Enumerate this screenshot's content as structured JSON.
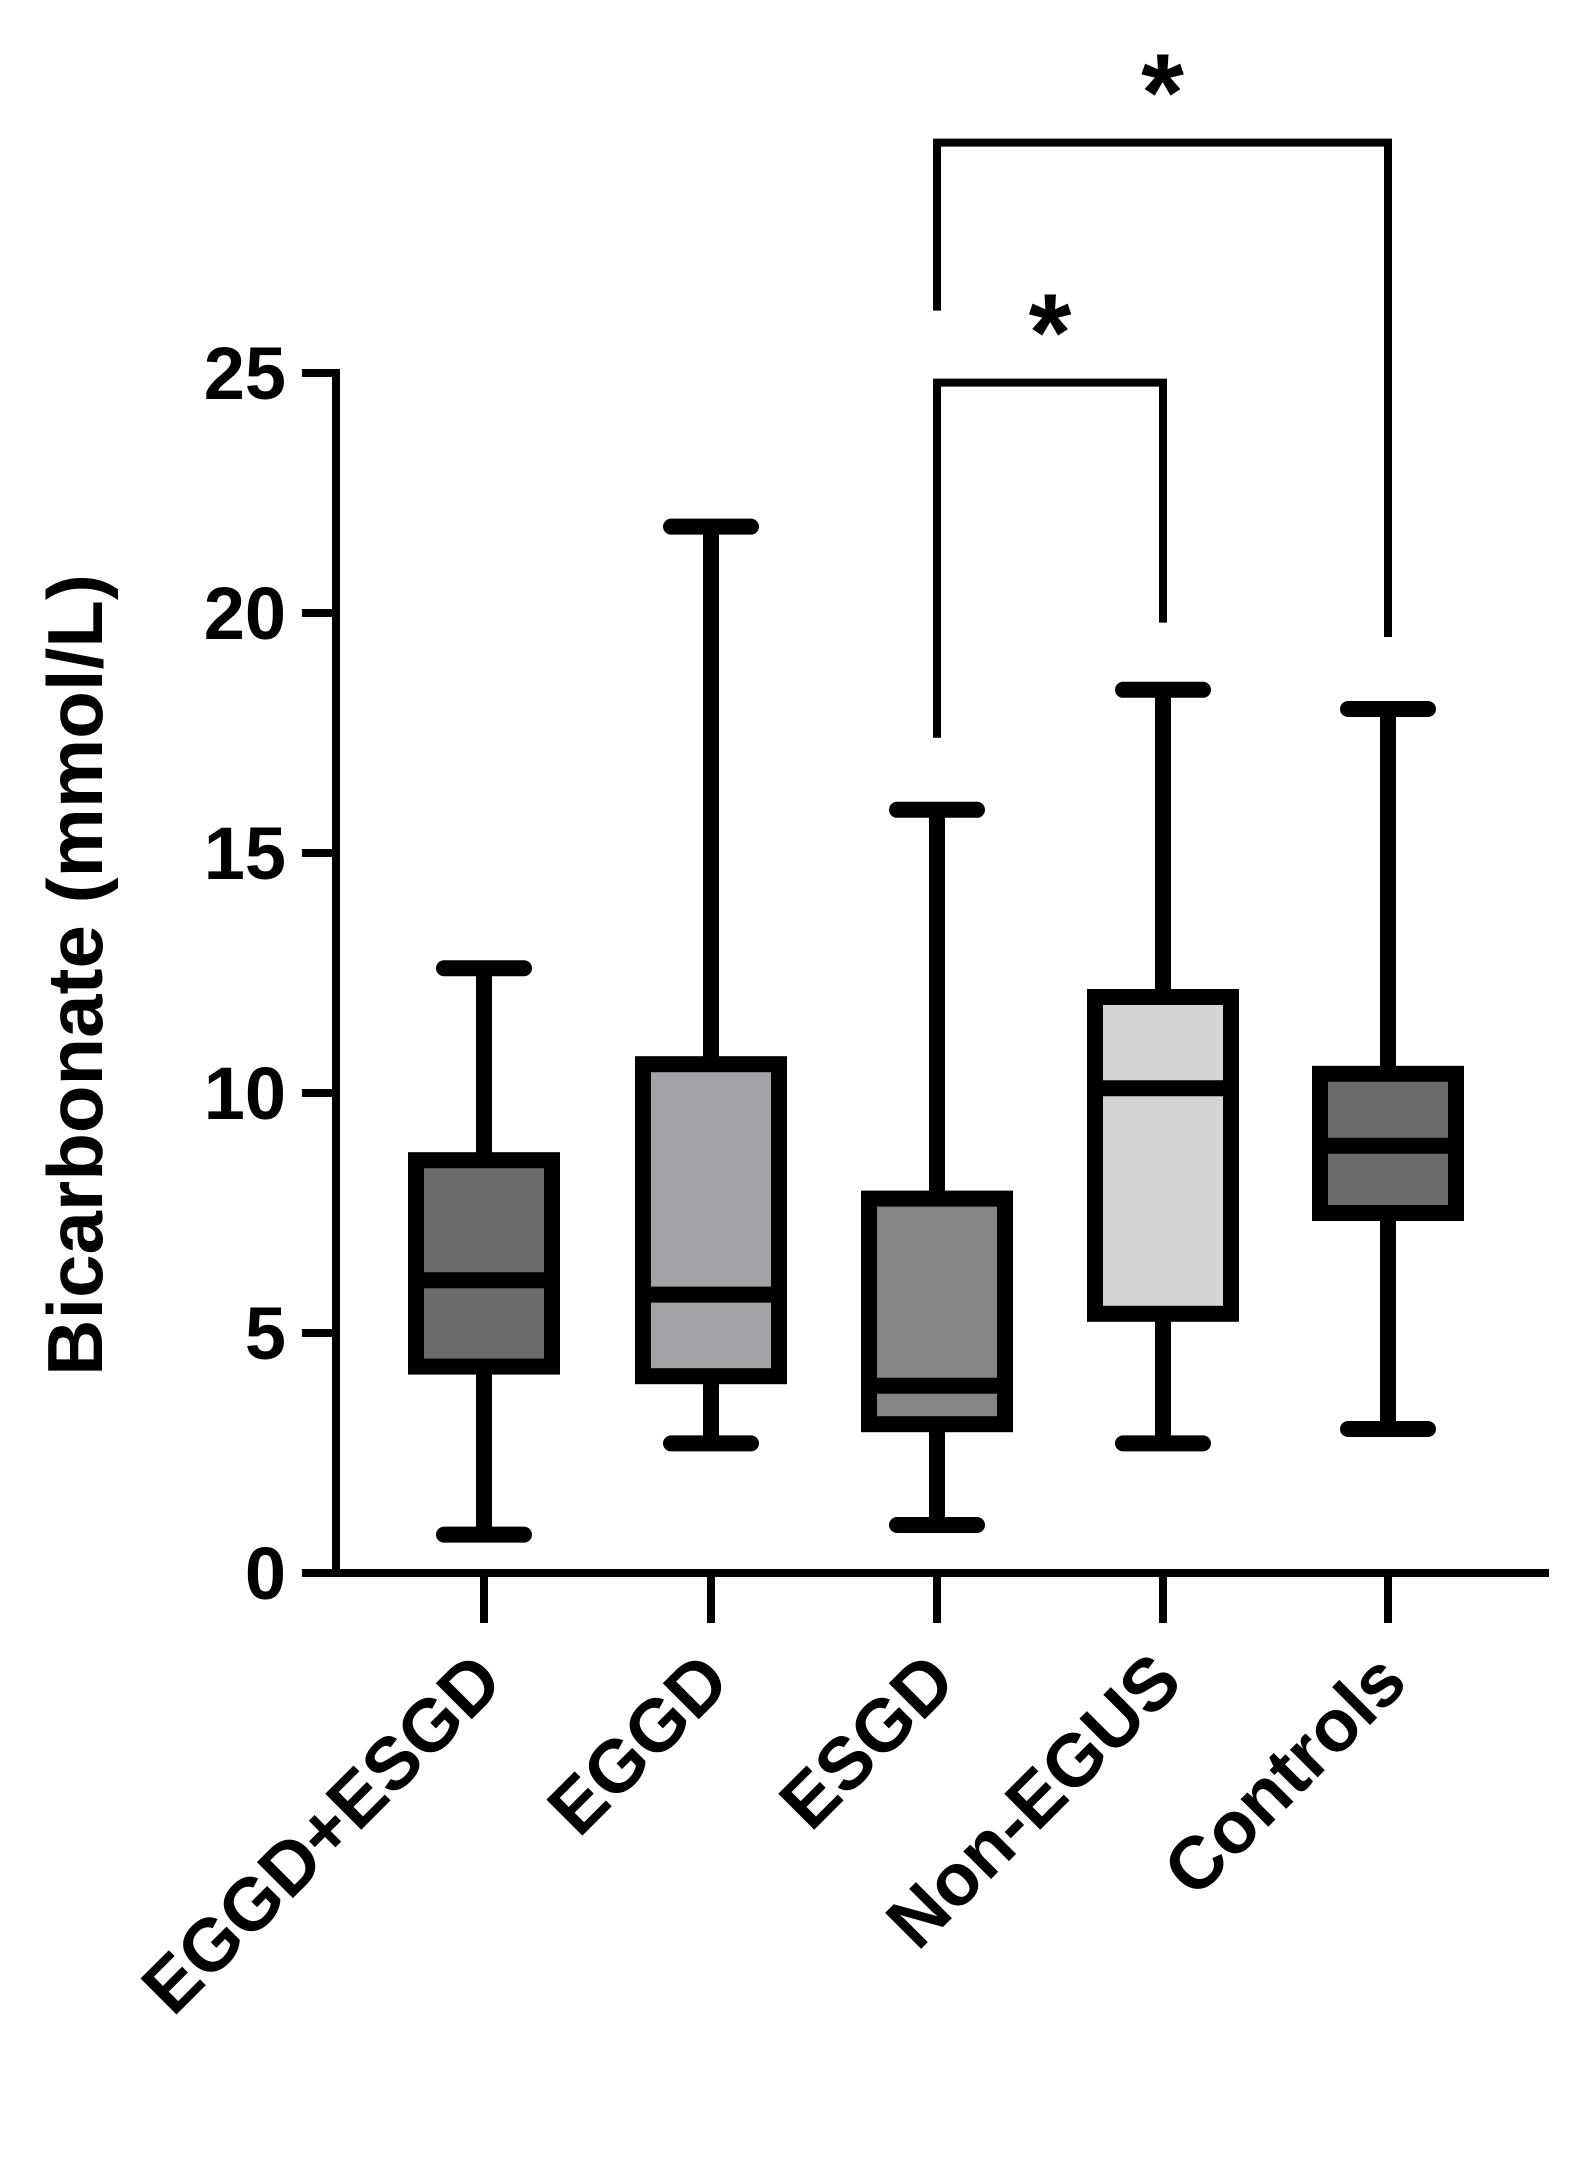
{
  "chart_data": {
    "type": "box",
    "title": "",
    "xlabel": "",
    "ylabel": "Bicarbonate (mmol/L)",
    "ylim": [
      0,
      25
    ],
    "yticks": [
      0,
      5,
      10,
      15,
      20,
      25
    ],
    "ytick_labels": [
      "0",
      "5",
      "10",
      "15",
      "20",
      "25"
    ],
    "categories": [
      "EGGD+ESGD",
      "EGGD",
      "ESGD",
      "Non-EGUS",
      "Controls"
    ],
    "groups": [
      {
        "name": "EGGD+ESGD",
        "min": 0.8,
        "q1": 4.3,
        "median": 6.1,
        "q3": 8.6,
        "max": 12.6,
        "fill": "#6b6b6b"
      },
      {
        "name": "EGGD",
        "min": 2.7,
        "q1": 4.1,
        "median": 5.8,
        "q3": 10.6,
        "max": 21.8,
        "fill": "#a3a3a7"
      },
      {
        "name": "ESGD",
        "min": 1.0,
        "q1": 3.1,
        "median": 3.9,
        "q3": 7.8,
        "max": 15.9,
        "fill": "#858585"
      },
      {
        "name": "Non-EGUS",
        "min": 2.7,
        "q1": 5.4,
        "median": 10.1,
        "q3": 12.0,
        "max": 18.4,
        "fill": "#d4d4d4"
      },
      {
        "name": "Controls",
        "min": 3.0,
        "q1": 7.5,
        "median": 8.9,
        "q3": 10.4,
        "max": 18.0,
        "fill": "#6b6b6b"
      }
    ],
    "annotations": [
      {
        "type": "significance_bracket",
        "from": "ESGD",
        "to": "Non-EGUS",
        "label": "*",
        "y": 24.8
      },
      {
        "type": "significance_bracket",
        "from": "ESGD",
        "to": "Controls",
        "label": "*",
        "y": 29.8
      }
    ]
  }
}
